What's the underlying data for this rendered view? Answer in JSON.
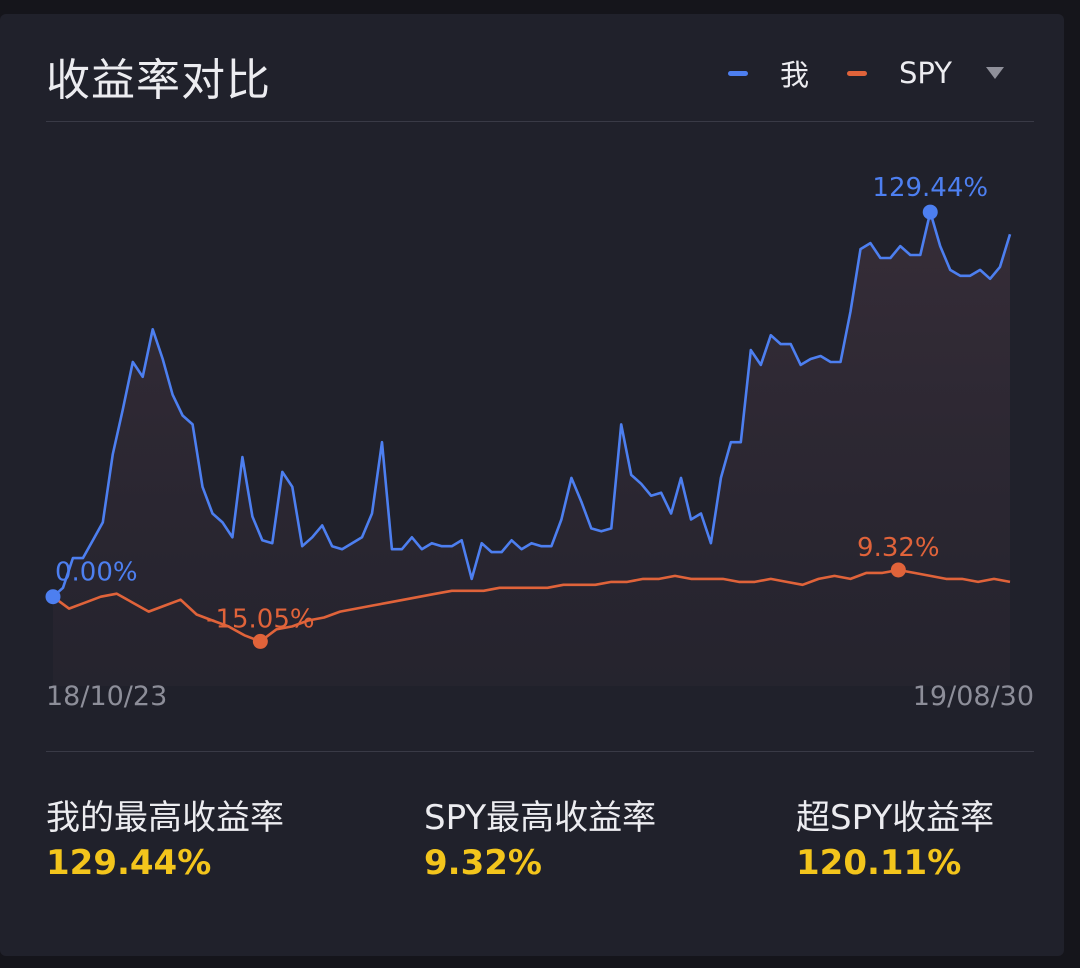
{
  "header": {
    "title": "收益率对比",
    "legend": [
      {
        "label": "我",
        "color": "#4d7ff0"
      },
      {
        "label": "SPY",
        "color": "#e0633a"
      }
    ]
  },
  "chart_data": {
    "type": "line",
    "x_start_label": "18/10/23",
    "x_end_label": "19/08/30",
    "ylim": [
      -25,
      150
    ],
    "series": [
      {
        "name": "我",
        "color": "#4d7ff0",
        "values": [
          0,
          3,
          13,
          13,
          19,
          25,
          48,
          63,
          79,
          74,
          90,
          80,
          68,
          61,
          58,
          37,
          28,
          25,
          20,
          47,
          27,
          19,
          18,
          42,
          37,
          17,
          20,
          24,
          17,
          16,
          18,
          20,
          28,
          52,
          16,
          16,
          20,
          16,
          18,
          17,
          17,
          19,
          6,
          18,
          15,
          15,
          19,
          16,
          18,
          17,
          17,
          26,
          40,
          32,
          23,
          22,
          23,
          58,
          41,
          38,
          34,
          35,
          28,
          40,
          26,
          28,
          18,
          40,
          52,
          52,
          83,
          78,
          88,
          85,
          85,
          78,
          80,
          81,
          79,
          79,
          96,
          117,
          119,
          114,
          114,
          118,
          115,
          115,
          129.44,
          118,
          110,
          108,
          108,
          110,
          107,
          111,
          122
        ],
        "peak_label": "129.44%",
        "start_label": "0.00%"
      },
      {
        "name": "SPY",
        "color": "#e0633a",
        "values": [
          0,
          -4,
          -2,
          0,
          1,
          -2,
          -5,
          -3,
          -1,
          -6,
          -8,
          -10,
          -13,
          -15.05,
          -11,
          -10,
          -8,
          -7,
          -5,
          -4,
          -3,
          -2,
          -1,
          0,
          1,
          2,
          2,
          2,
          3,
          3,
          3,
          3,
          4,
          4,
          4,
          5,
          5,
          6,
          6,
          7,
          6,
          6,
          6,
          5,
          5,
          6,
          5,
          4,
          6,
          7,
          6,
          8,
          8,
          9,
          8,
          7,
          6,
          6,
          5,
          6,
          5
        ],
        "trough_label": "-15.05%",
        "peak_label": "9.32%"
      }
    ]
  },
  "stats": [
    {
      "label": "我的最高收益率",
      "value": "129.44%"
    },
    {
      "label": "SPY最高收益率",
      "value": "9.32%"
    },
    {
      "label": "超SPY收益率",
      "value": "120.11%"
    }
  ]
}
